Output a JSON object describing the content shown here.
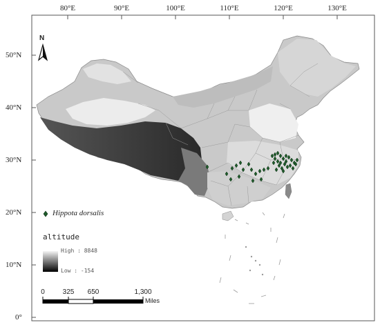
{
  "map": {
    "lon_ticks": [
      "80°E",
      "90°E",
      "100°E",
      "110°E",
      "120°E",
      "130°E"
    ],
    "lat_ticks": [
      "50°N",
      "40°N",
      "30°N",
      "20°N",
      "10°N",
      "0°"
    ],
    "north_label": "N",
    "legend": {
      "species_label": "Hippota dorsalis",
      "species_marker_color": "#1f5c2b",
      "altitude_title": "altitude",
      "high_label": "High : 8848",
      "low_label": "Low : -154"
    },
    "scale_bar": {
      "ticks": [
        "0",
        "325",
        "650",
        "1,300"
      ],
      "unit": "Miles"
    }
  }
}
